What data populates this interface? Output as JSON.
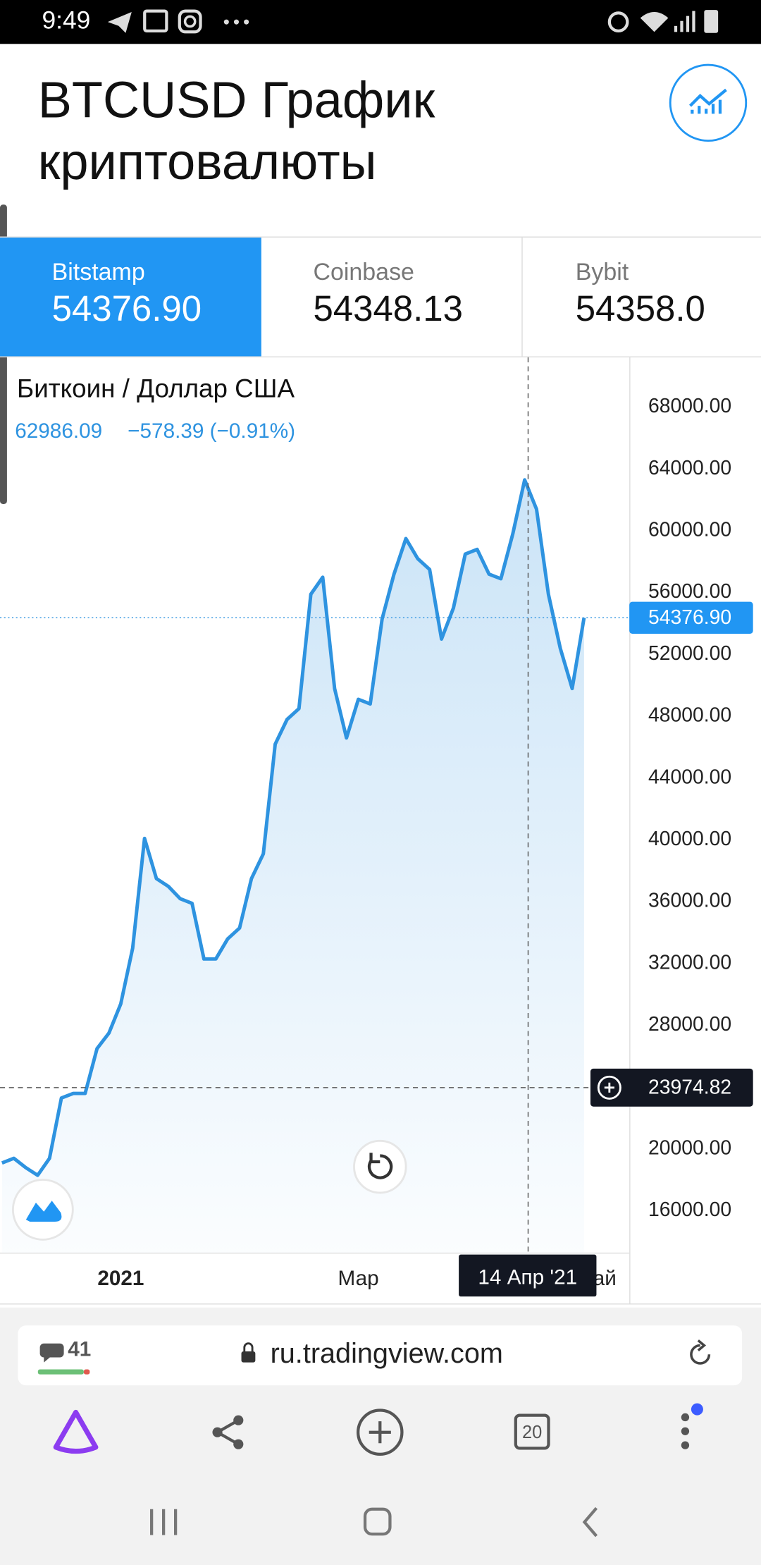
{
  "status_bar": {
    "time": "9:49"
  },
  "header": {
    "title_lines": [
      "BTCUSD График",
      "криптовалюты"
    ]
  },
  "exchanges": [
    {
      "name": "Bitstamp",
      "price": "54376.90"
    },
    {
      "name": "Coinbase",
      "price": "54348.13"
    },
    {
      "name": "Bybit",
      "price": "54358.0"
    }
  ],
  "chart_data": {
    "type": "line",
    "title": "Биткоин / Доллар США",
    "summary_price": "62986.09",
    "summary_change": "−578.39 (−0.91%)",
    "categories": [
      null,
      null,
      null,
      null,
      null,
      null,
      null,
      null,
      null,
      null,
      "2021",
      null,
      null,
      null,
      null,
      null,
      null,
      null,
      null,
      null,
      null,
      null,
      null,
      null,
      null,
      null,
      null,
      null,
      null,
      null,
      "Мар",
      null,
      null,
      null,
      null,
      null,
      null,
      null,
      null,
      null,
      null,
      null,
      null,
      null,
      null,
      null,
      null,
      null,
      null,
      null,
      "Май"
    ],
    "values": [
      19100,
      19400,
      18800,
      18300,
      19400,
      23300,
      23600,
      23600,
      26500,
      27500,
      29400,
      33000,
      40100,
      37500,
      37000,
      36200,
      35900,
      32300,
      32300,
      33600,
      34300,
      37500,
      39100,
      46200,
      47800,
      48500,
      55900,
      57000,
      49800,
      46600,
      49100,
      48800,
      54300,
      57200,
      59500,
      58200,
      57500,
      53000,
      55000,
      58500,
      58800,
      57200,
      56900,
      59800,
      63300,
      61400,
      55900,
      52400,
      49800,
      54376.9,
      null
    ],
    "color": "#2e93e0",
    "ylim": [
      13300,
      71100
    ],
    "yticks": [
      {
        "value": 68000,
        "label": "68000.00"
      },
      {
        "value": 64000,
        "label": "64000.00"
      },
      {
        "value": 60000,
        "label": "60000.00"
      },
      {
        "value": 56000,
        "label": "56000.00"
      },
      {
        "value": 52000,
        "label": "52000.00"
      },
      {
        "value": 48000,
        "label": "48000.00"
      },
      {
        "value": 44000,
        "label": "44000.00"
      },
      {
        "value": 40000,
        "label": "40000.00"
      },
      {
        "value": 36000,
        "label": "36000.00"
      },
      {
        "value": 32000,
        "label": "32000.00"
      },
      {
        "value": 28000,
        "label": "28000.00"
      },
      {
        "value": 20000,
        "label": "20000.00"
      },
      {
        "value": 16000,
        "label": "16000.00"
      }
    ],
    "last_price": {
      "value": 54376.9,
      "label": "54376.90"
    },
    "crosshair_price": 23974.82,
    "crosshair_date": "14 Апр '21"
  },
  "browser": {
    "comments": "41",
    "url": "ru.tradingview.com",
    "tab_count": "20"
  }
}
